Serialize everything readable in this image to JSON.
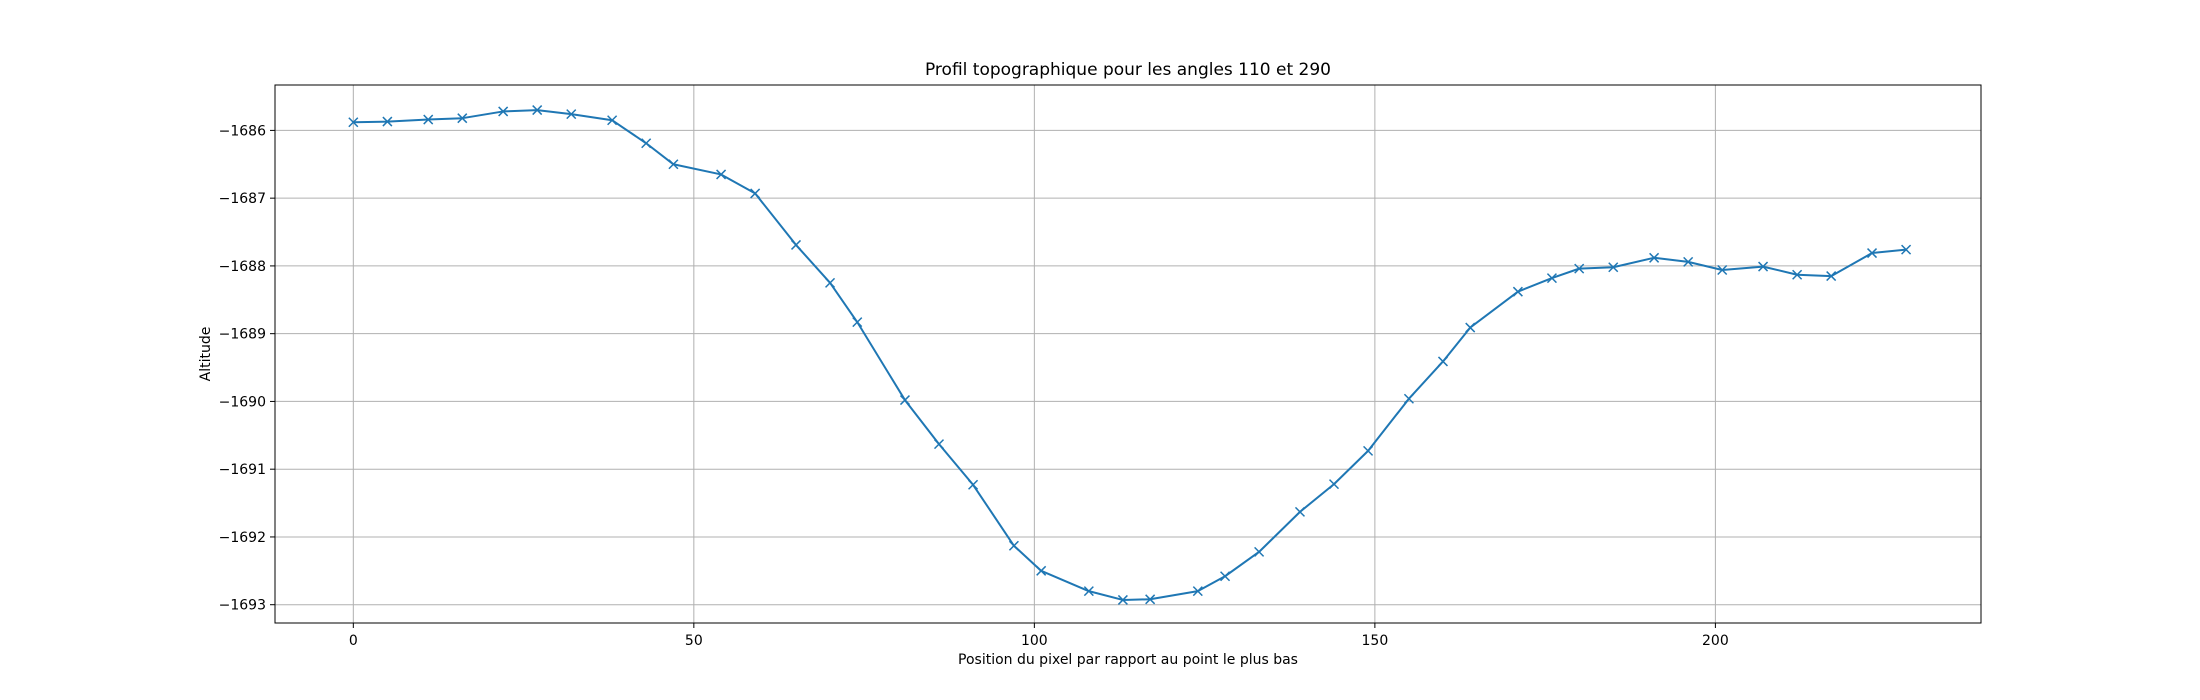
{
  "chart_data": {
    "type": "line",
    "title": "Profil topographique pour les angles 110 et 290",
    "xlabel": "Position du pixel par rapport au point le plus bas",
    "ylabel": "Altitude",
    "xlim": [
      -11.5,
      239
    ],
    "ylim": [
      -1693.27,
      -1685.33
    ],
    "xticks": [
      0,
      50,
      100,
      150,
      200
    ],
    "yticks": [
      -1686,
      -1687,
      -1688,
      -1689,
      -1690,
      -1691,
      -1692,
      -1693
    ],
    "tick_labels_x": [
      "0",
      "50",
      "100",
      "150",
      "200"
    ],
    "tick_labels_y": [
      "−1686",
      "−1687",
      "−1688",
      "−1689",
      "−1690",
      "−1691",
      "−1692",
      "−1693"
    ],
    "grid": true,
    "marker": "x",
    "color": "#1f77b4",
    "series": [
      {
        "x": [
          0,
          5,
          11,
          16,
          22,
          27,
          32,
          38,
          43,
          47,
          54,
          59,
          65,
          70,
          74,
          81,
          86,
          91,
          97,
          101,
          108,
          113,
          117,
          124,
          128,
          133,
          139,
          144,
          149,
          155,
          160,
          164,
          171,
          176,
          180,
          185,
          191,
          196,
          201,
          207,
          212,
          217,
          223,
          228
        ],
        "y": [
          -1685.88,
          -1685.87,
          -1685.84,
          -1685.82,
          -1685.72,
          -1685.7,
          -1685.76,
          -1685.85,
          -1686.19,
          -1686.5,
          -1686.65,
          -1686.93,
          -1687.69,
          -1688.25,
          -1688.83,
          -1689.98,
          -1690.63,
          -1691.23,
          -1692.13,
          -1692.5,
          -1692.8,
          -1692.93,
          -1692.92,
          -1692.8,
          -1692.58,
          -1692.22,
          -1691.63,
          -1691.22,
          -1690.73,
          -1689.96,
          -1689.41,
          -1688.91,
          -1688.38,
          -1688.18,
          -1688.04,
          -1688.02,
          -1687.88,
          -1687.94,
          -1688.06,
          -1688.01,
          -1688.13,
          -1688.15,
          -1687.81,
          -1687.76
        ]
      }
    ]
  }
}
